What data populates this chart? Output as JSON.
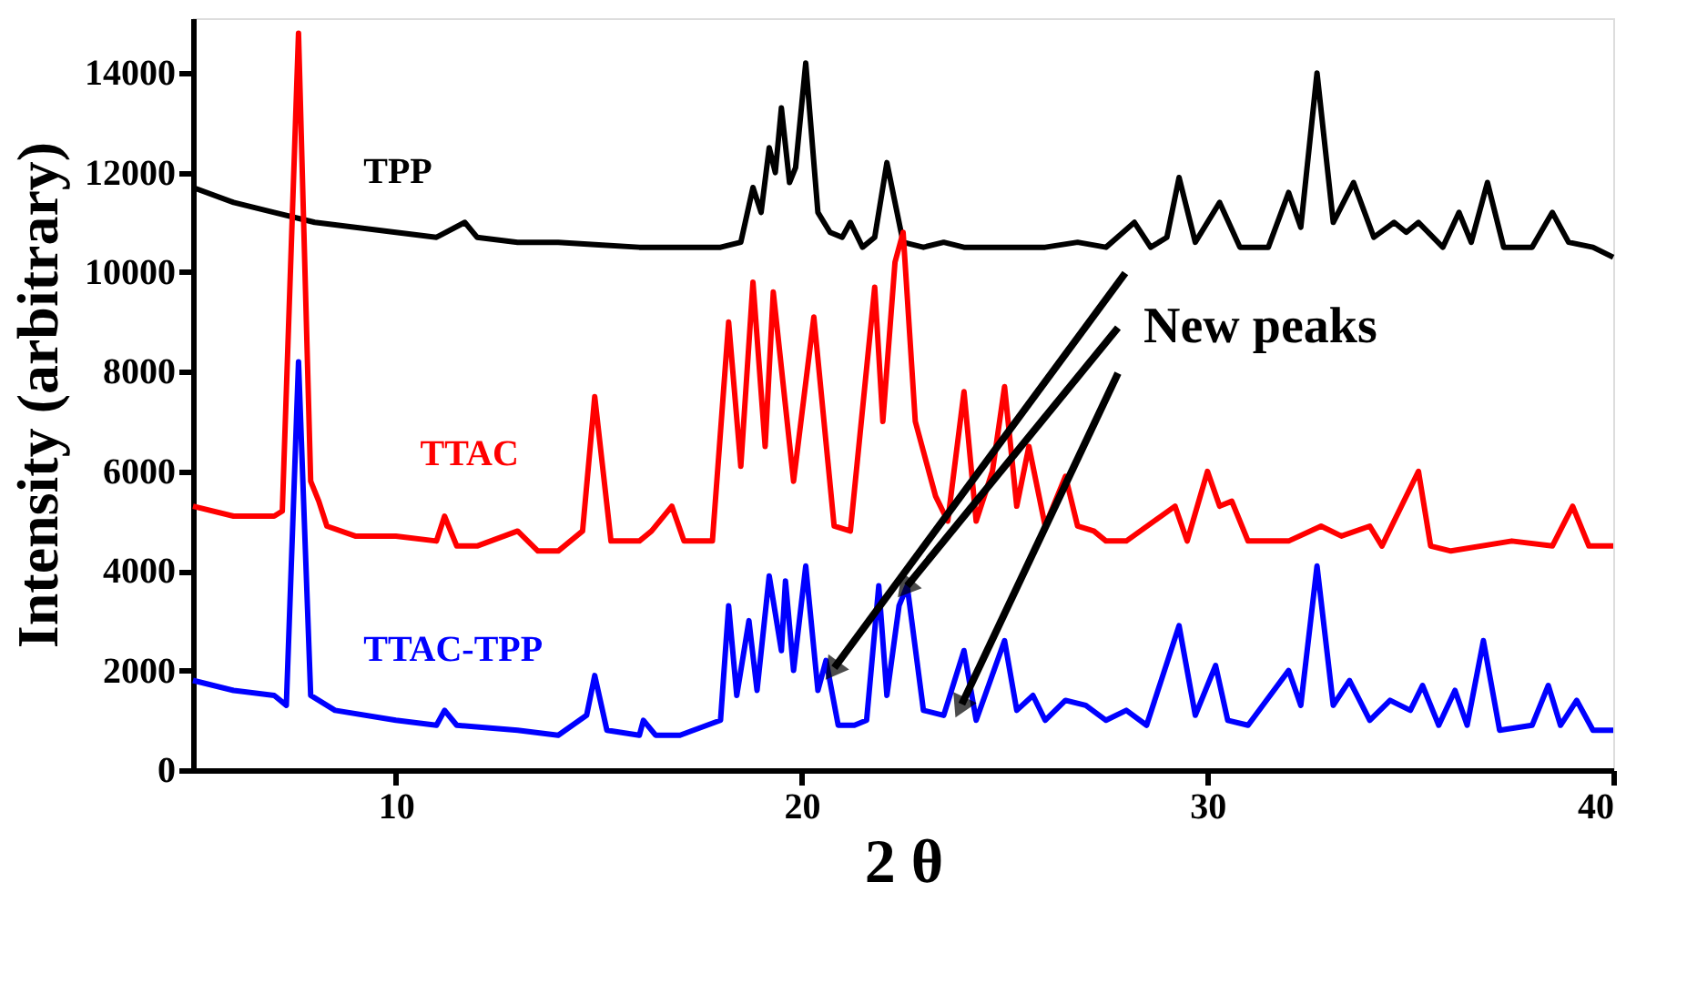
{
  "chart_data": {
    "type": "line",
    "xlabel": "2 θ",
    "ylabel": "Intensity (arbitrary)",
    "xlim": [
      5,
      40
    ],
    "ylim": [
      0,
      15100
    ],
    "xticks": [
      10,
      20,
      30,
      40
    ],
    "yticks": [
      0,
      2000,
      4000,
      6000,
      8000,
      10000,
      12000,
      14000
    ],
    "grid": false,
    "marker": "none",
    "line_style": "solid",
    "annotations": [
      {
        "text": "New peaks",
        "x": 22.6,
        "y": 3700
      }
    ],
    "series": [
      {
        "name": "TPP",
        "color": "#000000",
        "x": [
          5,
          6,
          7,
          8,
          9,
          10,
          11,
          11.7,
          12,
          13,
          14,
          15,
          16,
          17,
          18,
          18.5,
          18.8,
          19.0,
          19.2,
          19.35,
          19.5,
          19.7,
          19.85,
          20.1,
          20.4,
          20.7,
          21.0,
          21.2,
          21.5,
          21.8,
          22.1,
          22.5,
          23,
          23.5,
          24,
          25,
          26,
          26.8,
          27.5,
          28.2,
          28.6,
          29.0,
          29.3,
          29.7,
          30.3,
          30.8,
          31.5,
          32.0,
          32.3,
          32.7,
          33.1,
          33.6,
          34.1,
          34.6,
          34.9,
          35.2,
          35.8,
          36.2,
          36.5,
          36.9,
          37.3,
          38.0,
          38.5,
          38.9,
          39.5,
          40
        ],
        "values": [
          11700,
          11400,
          11200,
          11000,
          10900,
          10800,
          10700,
          11000,
          10700,
          10600,
          10600,
          10550,
          10500,
          10500,
          10500,
          10600,
          11700,
          11200,
          12500,
          12000,
          13300,
          11800,
          12100,
          14200,
          11200,
          10800,
          10700,
          11000,
          10500,
          10700,
          12200,
          10600,
          10500,
          10600,
          10500,
          10500,
          10500,
          10600,
          10500,
          11000,
          10500,
          10700,
          11900,
          10600,
          11400,
          10500,
          10500,
          11600,
          10900,
          14000,
          11000,
          11800,
          10700,
          11000,
          10800,
          11000,
          10500,
          11200,
          10600,
          11800,
          10500,
          10500,
          11200,
          10600,
          10500,
          10300
        ]
      },
      {
        "name": "TTAC",
        "color": "#ff0000",
        "x": [
          5,
          6,
          7,
          7.2,
          7.6,
          7.9,
          8.1,
          8.3,
          9,
          10,
          11,
          11.2,
          11.5,
          12,
          13,
          13.5,
          14,
          14.6,
          14.9,
          15.3,
          16,
          16.3,
          16.8,
          17.1,
          17.8,
          18.2,
          18.5,
          18.8,
          19.1,
          19.3,
          19.8,
          20.3,
          20.8,
          21.2,
          21.8,
          22.0,
          22.3,
          22.5,
          22.8,
          23.3,
          23.6,
          24.0,
          24.3,
          24.7,
          25.0,
          25.3,
          25.6,
          26.0,
          26.5,
          26.8,
          27.2,
          27.5,
          28,
          29.2,
          29.5,
          30,
          30.3,
          30.6,
          31,
          32,
          32.8,
          33.3,
          34,
          34.3,
          35.2,
          35.5,
          36,
          37.5,
          38.5,
          39,
          39.4,
          40
        ],
        "values": [
          5300,
          5100,
          5100,
          5200,
          14800,
          5800,
          5400,
          4900,
          4700,
          4700,
          4600,
          5100,
          4500,
          4500,
          4800,
          4400,
          4400,
          4800,
          7500,
          4600,
          4600,
          4800,
          5300,
          4600,
          4600,
          9000,
          6100,
          9800,
          6500,
          9600,
          5800,
          9100,
          4900,
          4800,
          9700,
          7000,
          10200,
          10800,
          7000,
          5500,
          5000,
          7600,
          5000,
          6000,
          7700,
          5300,
          6500,
          4900,
          5900,
          4900,
          4800,
          4600,
          4600,
          5300,
          4600,
          6000,
          5300,
          5400,
          4600,
          4600,
          4900,
          4700,
          4900,
          4500,
          6000,
          4500,
          4400,
          4600,
          4500,
          5300,
          4500,
          4500
        ]
      },
      {
        "name": "TTAC-TPP",
        "color": "#0000ff",
        "x": [
          5,
          6,
          7,
          7.3,
          7.6,
          7.9,
          8.5,
          10,
          11,
          11.2,
          11.5,
          13,
          14,
          14.7,
          14.9,
          15.2,
          16,
          16.1,
          16.4,
          17,
          18,
          18.2,
          18.4,
          18.7,
          18.9,
          19.2,
          19.5,
          19.6,
          19.8,
          20.1,
          20.4,
          20.6,
          20.9,
          21.3,
          21.6,
          21.9,
          22.1,
          22.4,
          22.6,
          23.0,
          23.5,
          24.0,
          24.3,
          25.0,
          25.3,
          25.7,
          26,
          26.5,
          27,
          27.5,
          28,
          28.5,
          29.3,
          29.7,
          30.2,
          30.5,
          31,
          32,
          32.3,
          32.7,
          33.1,
          33.5,
          34,
          34.5,
          35,
          35.3,
          35.7,
          36.1,
          36.4,
          36.8,
          37.2,
          38,
          38.4,
          38.7,
          39.1,
          39.5,
          40
        ],
        "values": [
          1800,
          1600,
          1500,
          1300,
          8200,
          1500,
          1200,
          1000,
          900,
          1200,
          900,
          800,
          700,
          1100,
          1900,
          800,
          700,
          1000,
          700,
          700,
          1000,
          3300,
          1500,
          3000,
          1600,
          3900,
          2400,
          3800,
          2000,
          4100,
          1600,
          2200,
          900,
          900,
          1000,
          3700,
          1500,
          3300,
          3700,
          1200,
          1100,
          2400,
          1000,
          2600,
          1200,
          1500,
          1000,
          1400,
          1300,
          1000,
          1200,
          900,
          2900,
          1100,
          2100,
          1000,
          900,
          2000,
          1300,
          4100,
          1300,
          1800,
          1000,
          1400,
          1200,
          1700,
          900,
          1600,
          900,
          2600,
          800,
          900,
          1700,
          900,
          1400,
          800,
          800
        ]
      }
    ]
  }
}
